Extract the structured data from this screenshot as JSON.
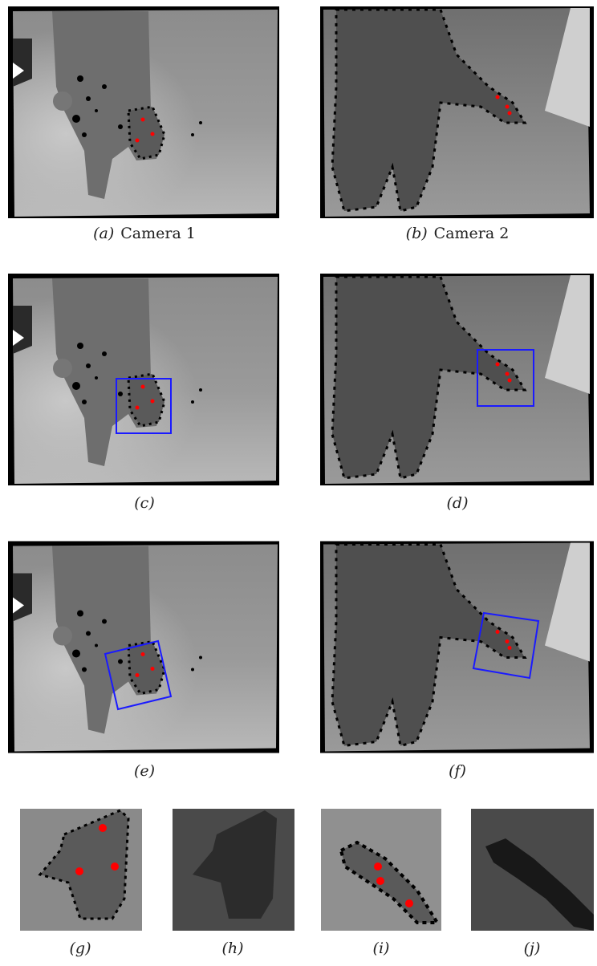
{
  "panels": [
    {
      "label": "(a)",
      "text": "Camera 1"
    },
    {
      "label": "(b)",
      "text": "Camera 2"
    },
    {
      "label": "(c)"
    },
    {
      "label": "(d)"
    },
    {
      "label": "(e)"
    },
    {
      "label": "(f)"
    },
    {
      "label": "(g)"
    },
    {
      "label": "(h)"
    },
    {
      "label": "(i)"
    },
    {
      "label": "(j)"
    }
  ]
}
